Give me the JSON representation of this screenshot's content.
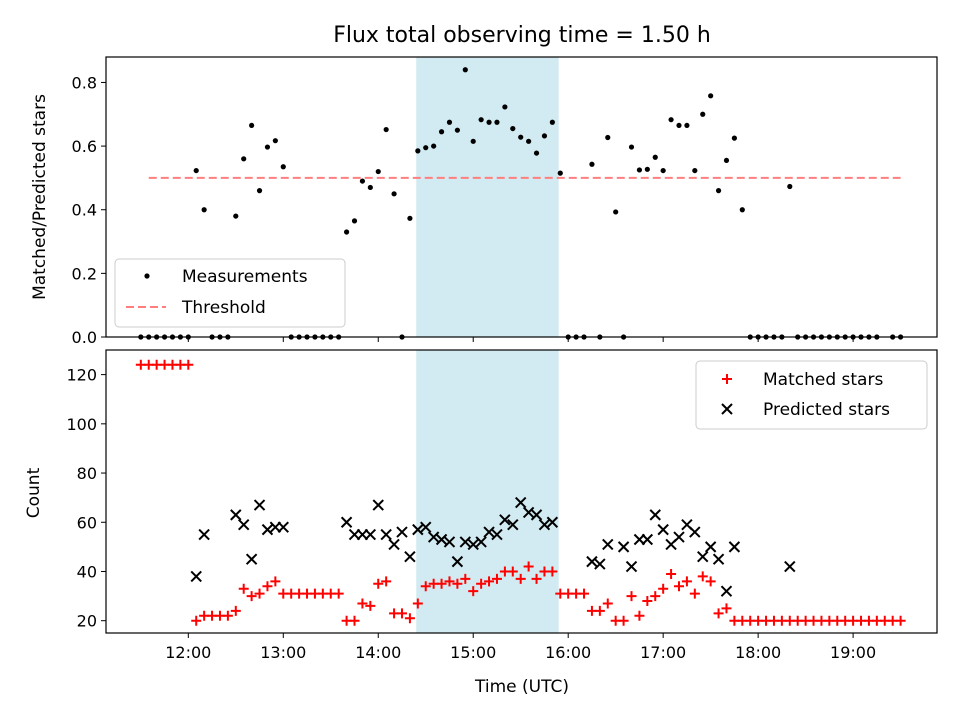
{
  "chart_data": [
    {
      "type": "scatter",
      "title": "Flux total observing time = 1.50 h",
      "ylabel": "Matched/Predicted stars",
      "xlabel": "",
      "ylim": [
        0,
        0.88
      ],
      "yticks": [
        0.0,
        0.2,
        0.4,
        0.6,
        0.8
      ],
      "highlight_span": {
        "from": "14:24",
        "to": "15:54",
        "color": "#add8e6"
      },
      "legend_placement": "lower-left",
      "series": [
        {
          "name": "Measurements",
          "kind": "points",
          "color": "#000000",
          "points": [
            [
              "11:30",
              0
            ],
            [
              "11:35",
              0
            ],
            [
              "11:40",
              0
            ],
            [
              "11:45",
              0
            ],
            [
              "11:50",
              0
            ],
            [
              "11:55",
              0
            ],
            [
              "12:00",
              0
            ],
            [
              "12:05",
              0.523
            ],
            [
              "12:10",
              0.4
            ],
            [
              "12:15",
              0
            ],
            [
              "12:20",
              0
            ],
            [
              "12:25",
              0
            ],
            [
              "12:30",
              0.38
            ],
            [
              "12:35",
              0.56
            ],
            [
              "12:40",
              0.665
            ],
            [
              "12:45",
              0.46
            ],
            [
              "12:50",
              0.597
            ],
            [
              "12:55",
              0.617
            ],
            [
              "13:00",
              0.535
            ],
            [
              "13:05",
              0
            ],
            [
              "13:10",
              0
            ],
            [
              "13:15",
              0
            ],
            [
              "13:20",
              0
            ],
            [
              "13:25",
              0
            ],
            [
              "13:30",
              0
            ],
            [
              "13:35",
              0
            ],
            [
              "13:40",
              0.33
            ],
            [
              "13:45",
              0.365
            ],
            [
              "13:50",
              0.49
            ],
            [
              "13:55",
              0.47
            ],
            [
              "14:00",
              0.52
            ],
            [
              "14:05",
              0.652
            ],
            [
              "14:10",
              0.45
            ],
            [
              "14:15",
              0
            ],
            [
              "14:20",
              0.373
            ],
            [
              "14:25",
              0.585
            ],
            [
              "14:30",
              0.595
            ],
            [
              "14:35",
              0.6
            ],
            [
              "14:40",
              0.645
            ],
            [
              "14:45",
              0.675
            ],
            [
              "14:50",
              0.65
            ],
            [
              "14:55",
              0.84
            ],
            [
              "15:00",
              0.615
            ],
            [
              "15:05",
              0.683
            ],
            [
              "15:10",
              0.675
            ],
            [
              "15:15",
              0.675
            ],
            [
              "15:20",
              0.723
            ],
            [
              "15:25",
              0.655
            ],
            [
              "15:30",
              0.628
            ],
            [
              "15:35",
              0.615
            ],
            [
              "15:40",
              0.578
            ],
            [
              "15:45",
              0.632
            ],
            [
              "15:50",
              0.675
            ],
            [
              "15:55",
              0.515
            ],
            [
              "16:00",
              0
            ],
            [
              "16:05",
              0
            ],
            [
              "16:10",
              0
            ],
            [
              "16:15",
              0.543
            ],
            [
              "16:20",
              0
            ],
            [
              "16:25",
              0.627
            ],
            [
              "16:30",
              0.393
            ],
            [
              "16:35",
              0
            ],
            [
              "16:40",
              0.597
            ],
            [
              "16:45",
              0.525
            ],
            [
              "16:50",
              0.527
            ],
            [
              "16:55",
              0.565
            ],
            [
              "17:00",
              0.523
            ],
            [
              "17:05",
              0.683
            ],
            [
              "17:10",
              0.665
            ],
            [
              "17:15",
              0.665
            ],
            [
              "17:20",
              0.523
            ],
            [
              "17:25",
              0.7
            ],
            [
              "17:30",
              0.758
            ],
            [
              "17:35",
              0.46
            ],
            [
              "17:40",
              0.555
            ],
            [
              "17:45",
              0.625
            ],
            [
              "17:50",
              0.4
            ],
            [
              "17:55",
              0
            ],
            [
              "18:00",
              0
            ],
            [
              "18:05",
              0
            ],
            [
              "18:10",
              0
            ],
            [
              "18:15",
              0
            ],
            [
              "18:20",
              0.473
            ],
            [
              "18:25",
              0
            ],
            [
              "18:30",
              0
            ],
            [
              "18:35",
              0
            ],
            [
              "18:40",
              0
            ],
            [
              "18:45",
              0
            ],
            [
              "18:50",
              0
            ],
            [
              "18:55",
              0
            ],
            [
              "19:00",
              0
            ],
            [
              "19:05",
              0
            ],
            [
              "19:10",
              0
            ],
            [
              "19:15",
              0
            ],
            [
              "19:25",
              0
            ],
            [
              "19:30",
              0
            ]
          ]
        },
        {
          "name": "Threshold",
          "kind": "dashed-line",
          "color": "#ff7f7f",
          "points": [
            [
              "11:35",
              0.5
            ],
            [
              "19:30",
              0.5
            ]
          ]
        }
      ]
    },
    {
      "type": "scatter",
      "title": "",
      "xlabel": "Time (UTC)",
      "ylabel": "Count",
      "ylim": [
        15,
        130
      ],
      "yticks": [
        20,
        40,
        60,
        80,
        100,
        120
      ],
      "xticks": [
        "12:00",
        "13:00",
        "14:00",
        "15:00",
        "16:00",
        "17:00",
        "18:00",
        "19:00"
      ],
      "highlight_span": {
        "from": "14:24",
        "to": "15:54",
        "color": "#add8e6"
      },
      "legend_placement": "upper-right",
      "series": [
        {
          "name": "Matched stars",
          "marker": "plus",
          "color": "#ff0000",
          "points": [
            [
              "11:30",
              124
            ],
            [
              "11:35",
              124
            ],
            [
              "11:40",
              124
            ],
            [
              "11:45",
              124
            ],
            [
              "11:50",
              124
            ],
            [
              "11:55",
              124
            ],
            [
              "12:00",
              124
            ],
            [
              "12:05",
              20
            ],
            [
              "12:10",
              22
            ],
            [
              "12:15",
              22
            ],
            [
              "12:20",
              22
            ],
            [
              "12:25",
              22
            ],
            [
              "12:30",
              24
            ],
            [
              "12:35",
              33
            ],
            [
              "12:40",
              30
            ],
            [
              "12:45",
              31
            ],
            [
              "12:50",
              34
            ],
            [
              "12:55",
              36
            ],
            [
              "13:00",
              31
            ],
            [
              "13:05",
              31
            ],
            [
              "13:10",
              31
            ],
            [
              "13:15",
              31
            ],
            [
              "13:20",
              31
            ],
            [
              "13:25",
              31
            ],
            [
              "13:30",
              31
            ],
            [
              "13:35",
              31
            ],
            [
              "13:40",
              20
            ],
            [
              "13:45",
              20
            ],
            [
              "13:50",
              27
            ],
            [
              "13:55",
              26
            ],
            [
              "14:00",
              35
            ],
            [
              "14:05",
              36
            ],
            [
              "14:10",
              23
            ],
            [
              "14:15",
              23
            ],
            [
              "14:20",
              21
            ],
            [
              "14:25",
              27
            ],
            [
              "14:30",
              34
            ],
            [
              "14:35",
              35
            ],
            [
              "14:40",
              35
            ],
            [
              "14:45",
              36
            ],
            [
              "14:50",
              35
            ],
            [
              "14:55",
              37
            ],
            [
              "15:00",
              32
            ],
            [
              "15:05",
              35
            ],
            [
              "15:10",
              36
            ],
            [
              "15:15",
              37
            ],
            [
              "15:20",
              40
            ],
            [
              "15:25",
              40
            ],
            [
              "15:30",
              37
            ],
            [
              "15:35",
              42
            ],
            [
              "15:40",
              37
            ],
            [
              "15:45",
              40
            ],
            [
              "15:50",
              40
            ],
            [
              "15:55",
              31
            ],
            [
              "16:00",
              31
            ],
            [
              "16:05",
              31
            ],
            [
              "16:10",
              31
            ],
            [
              "16:15",
              24
            ],
            [
              "16:20",
              24
            ],
            [
              "16:25",
              27
            ],
            [
              "16:30",
              20
            ],
            [
              "16:35",
              20
            ],
            [
              "16:40",
              30
            ],
            [
              "16:45",
              22
            ],
            [
              "16:50",
              28
            ],
            [
              "16:55",
              30
            ],
            [
              "17:00",
              33
            ],
            [
              "17:05",
              39
            ],
            [
              "17:10",
              34
            ],
            [
              "17:15",
              36
            ],
            [
              "17:20",
              31
            ],
            [
              "17:25",
              38
            ],
            [
              "17:30",
              36
            ],
            [
              "17:35",
              23
            ],
            [
              "17:40",
              25
            ],
            [
              "17:45",
              20
            ],
            [
              "17:50",
              20
            ],
            [
              "17:55",
              20
            ],
            [
              "18:00",
              20
            ],
            [
              "18:05",
              20
            ],
            [
              "18:10",
              20
            ],
            [
              "18:15",
              20
            ],
            [
              "18:20",
              20
            ],
            [
              "18:25",
              20
            ],
            [
              "18:30",
              20
            ],
            [
              "18:35",
              20
            ],
            [
              "18:40",
              20
            ],
            [
              "18:45",
              20
            ],
            [
              "18:50",
              20
            ],
            [
              "18:55",
              20
            ],
            [
              "19:00",
              20
            ],
            [
              "19:05",
              20
            ],
            [
              "19:10",
              20
            ],
            [
              "19:15",
              20
            ],
            [
              "19:20",
              20
            ],
            [
              "19:25",
              20
            ],
            [
              "19:30",
              20
            ]
          ]
        },
        {
          "name": "Predicted stars",
          "marker": "x",
          "color": "#000000",
          "points": [
            [
              "12:05",
              38
            ],
            [
              "12:10",
              55
            ],
            [
              "12:30",
              63
            ],
            [
              "12:35",
              59
            ],
            [
              "12:40",
              45
            ],
            [
              "12:45",
              67
            ],
            [
              "12:50",
              57
            ],
            [
              "12:55",
              58
            ],
            [
              "13:00",
              58
            ],
            [
              "13:40",
              60
            ],
            [
              "13:45",
              55
            ],
            [
              "13:50",
              55
            ],
            [
              "13:55",
              55
            ],
            [
              "14:00",
              67
            ],
            [
              "14:05",
              55
            ],
            [
              "14:10",
              51
            ],
            [
              "14:15",
              56
            ],
            [
              "14:20",
              46
            ],
            [
              "14:25",
              57
            ],
            [
              "14:30",
              58
            ],
            [
              "14:35",
              54
            ],
            [
              "14:40",
              53
            ],
            [
              "14:45",
              52
            ],
            [
              "14:50",
              44
            ],
            [
              "14:55",
              52
            ],
            [
              "15:00",
              51
            ],
            [
              "15:05",
              52
            ],
            [
              "15:10",
              56
            ],
            [
              "15:15",
              55
            ],
            [
              "15:20",
              61
            ],
            [
              "15:25",
              59
            ],
            [
              "15:30",
              68
            ],
            [
              "15:35",
              64
            ],
            [
              "15:40",
              63
            ],
            [
              "15:45",
              59
            ],
            [
              "15:50",
              60
            ],
            [
              "16:15",
              44
            ],
            [
              "16:20",
              43
            ],
            [
              "16:25",
              51
            ],
            [
              "16:35",
              50
            ],
            [
              "16:40",
              42
            ],
            [
              "16:45",
              53
            ],
            [
              "16:50",
              53
            ],
            [
              "16:55",
              63
            ],
            [
              "17:00",
              57
            ],
            [
              "17:05",
              51
            ],
            [
              "17:10",
              54
            ],
            [
              "17:15",
              59
            ],
            [
              "17:20",
              56
            ],
            [
              "17:25",
              46
            ],
            [
              "17:30",
              50
            ],
            [
              "17:35",
              45
            ],
            [
              "17:40",
              32
            ],
            [
              "17:45",
              50
            ],
            [
              "18:20",
              42
            ]
          ]
        }
      ]
    }
  ]
}
